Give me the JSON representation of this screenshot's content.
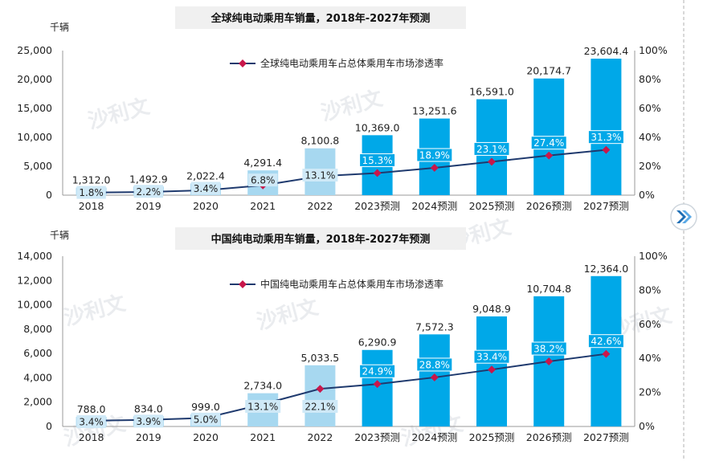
{
  "colors": {
    "bar_actual": "#a7d8f0",
    "bar_forecast": "#00a8e8",
    "line": "#1f3a6e",
    "marker": "#c8174b",
    "label_bg_forecast": "#00a8e8",
    "label_bg_actual": "#cfe9f7",
    "nav_button": "#1f6fb5"
  },
  "watermark": "沙利文",
  "nav_button_icon": "double-chevron-right-icon",
  "chart_data": [
    {
      "type": "bar",
      "title": "全球纯电动乘用车销量，2018年-2027年预测",
      "unit_label": "千辆",
      "categories": [
        "2018",
        "2019",
        "2020",
        "2021",
        "2022",
        "2023预测",
        "2024预测",
        "2025预测",
        "2026预测",
        "2027预测"
      ],
      "forecast_from_index": 5,
      "series": [
        {
          "type": "bar",
          "values": [
            1312.0,
            1492.9,
            2022.4,
            4291.4,
            8100.8,
            10369.0,
            13251.6,
            16591.0,
            20174.7,
            23604.4
          ],
          "value_labels": [
            "1,312.0",
            "1,492.9",
            "2,022.4",
            "4,291.4",
            "8,100.8",
            "10,369.0",
            "13,251.6",
            "16,591.0",
            "20,174.7",
            "23,604.4"
          ]
        },
        {
          "type": "line",
          "name": "全球纯电动乘用车占总体乘用车市场渗透率",
          "axis": "right",
          "values": [
            1.8,
            2.2,
            3.4,
            6.8,
            13.1,
            15.3,
            18.9,
            23.1,
            27.4,
            31.3
          ],
          "value_labels": [
            "1.8%",
            "2.2%",
            "3.4%",
            "6.8%",
            "13.1%",
            "15.3%",
            "18.9%",
            "23.1%",
            "27.4%",
            "31.3%"
          ]
        }
      ],
      "ylim_left": [
        0,
        25000
      ],
      "yticks_left": [
        "0",
        "5,000",
        "10,000",
        "15,000",
        "20,000",
        "25,000"
      ],
      "ylim_right": [
        0,
        100
      ],
      "yticks_right": [
        "0%",
        "20%",
        "40%",
        "60%",
        "80%",
        "100%"
      ],
      "legend": "top-center"
    },
    {
      "type": "bar",
      "title": "中国纯电动乘用车销量，2018年-2027年预测",
      "unit_label": "千辆",
      "categories": [
        "2018",
        "2019",
        "2020",
        "2021",
        "2022",
        "2023预测",
        "2024预测",
        "2025预测",
        "2026预测",
        "2027预测"
      ],
      "forecast_from_index": 5,
      "series": [
        {
          "type": "bar",
          "values": [
            788.0,
            834.0,
            999.0,
            2734.0,
            5033.5,
            6290.9,
            7572.3,
            9048.9,
            10704.8,
            12364.0
          ],
          "value_labels": [
            "788.0",
            "834.0",
            "999.0",
            "2,734.0",
            "5,033.5",
            "6,290.9",
            "7,572.3",
            "9,048.9",
            "10,704.8",
            "12,364.0"
          ]
        },
        {
          "type": "line",
          "name": "中国纯电动乘用车占总体乘用车市场渗透率",
          "axis": "right",
          "values": [
            3.4,
            3.9,
            5.0,
            13.1,
            22.1,
            24.9,
            28.8,
            33.4,
            38.2,
            42.6
          ],
          "value_labels": [
            "3.4%",
            "3.9%",
            "5.0%",
            "13.1%",
            "22.1%",
            "24.9%",
            "28.8%",
            "33.4%",
            "38.2%",
            "42.6%"
          ]
        }
      ],
      "ylim_left": [
        0,
        14000
      ],
      "yticks_left": [
        "0",
        "2,000",
        "4,000",
        "6,000",
        "8,000",
        "10,000",
        "12,000",
        "14,000"
      ],
      "ylim_right": [
        0,
        100
      ],
      "yticks_right": [
        "0%",
        "20%",
        "40%",
        "60%",
        "80%",
        "100%"
      ],
      "legend": "top-center"
    }
  ]
}
